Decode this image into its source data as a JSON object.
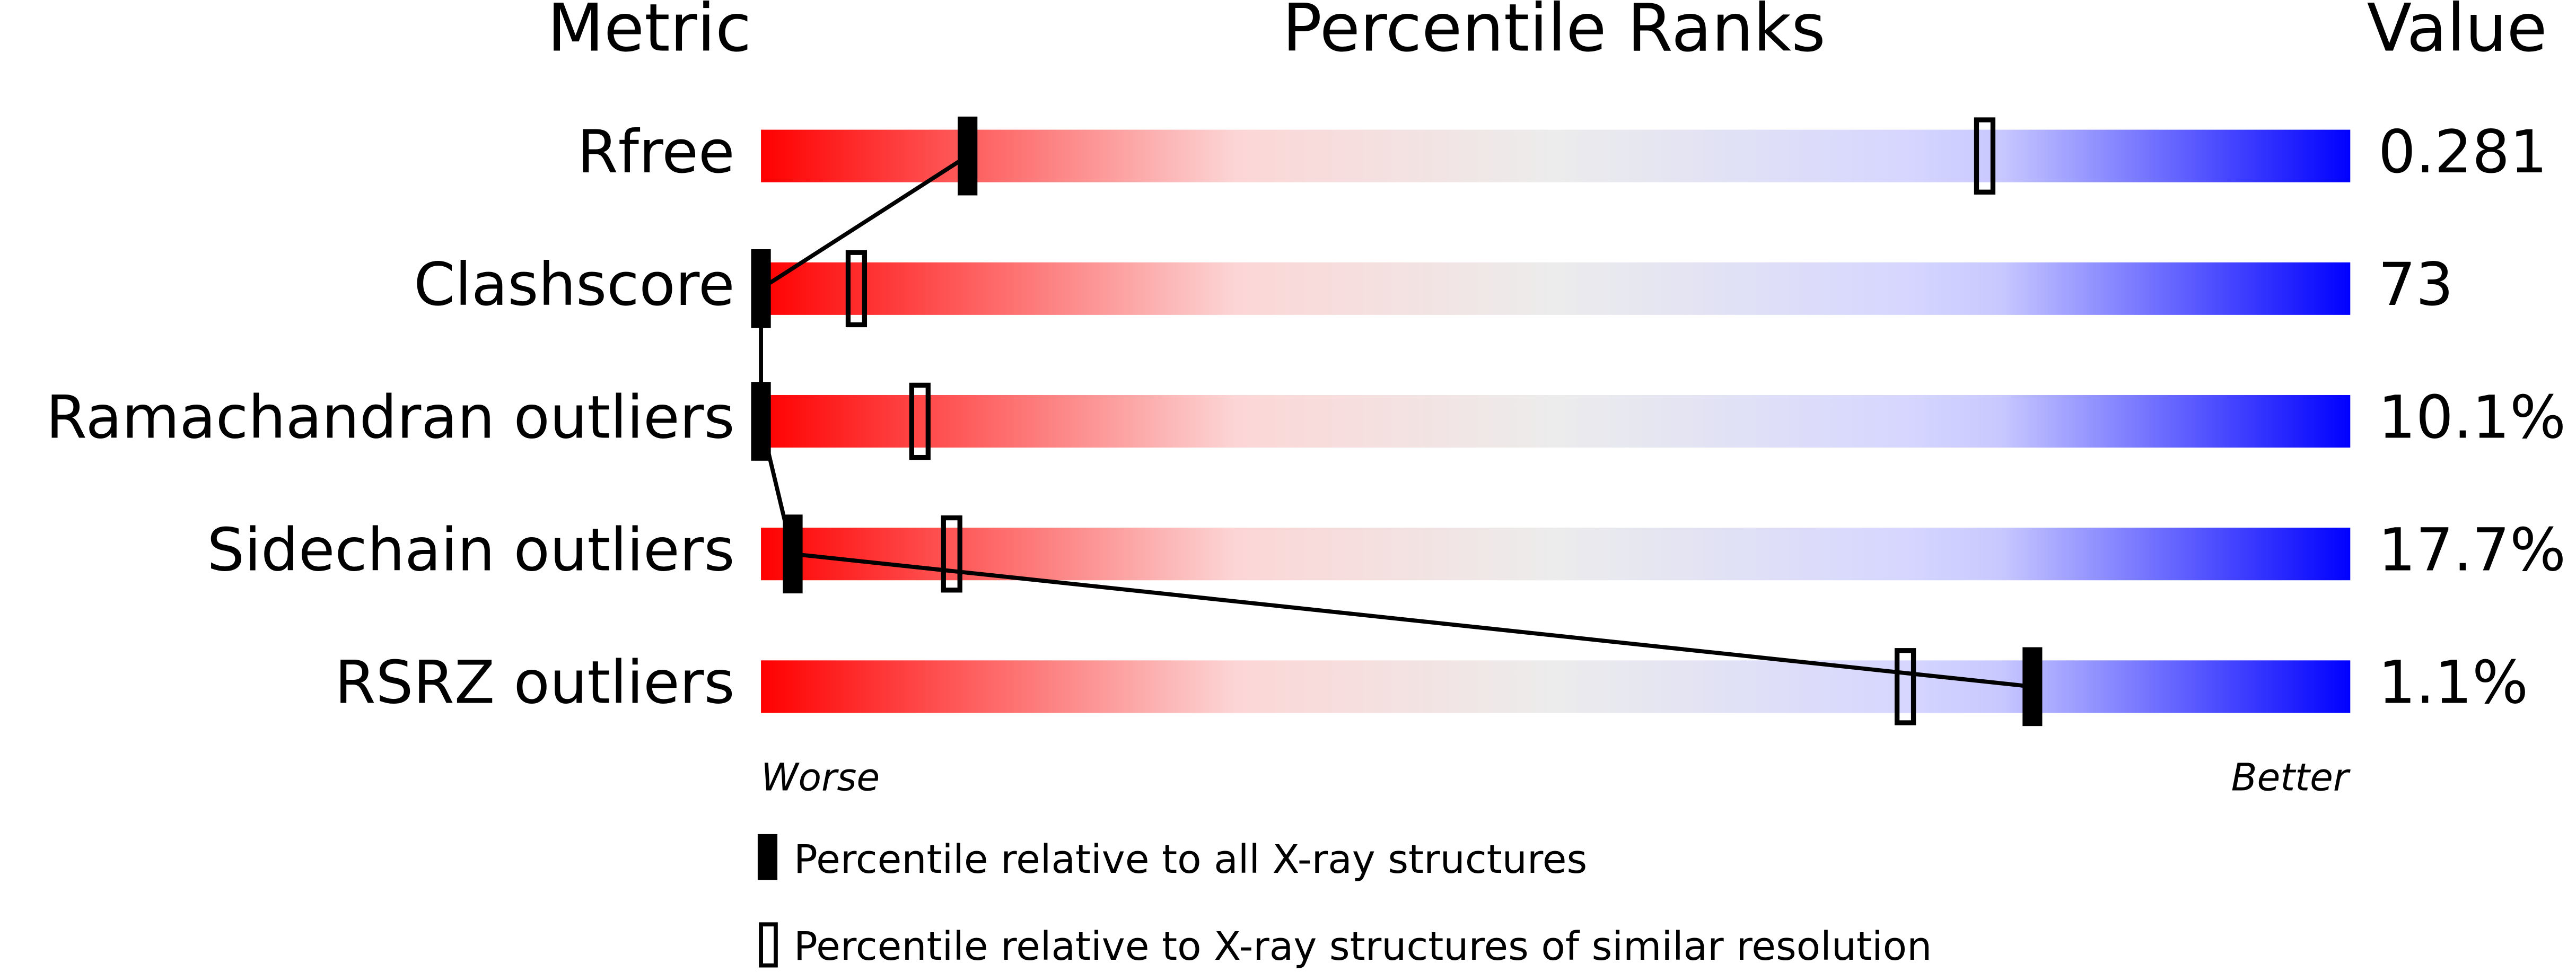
{
  "chart_data": {
    "type": "percentile",
    "title": "Percentile Ranks",
    "metric_header": "Metric",
    "value_header": "Value",
    "categories": [
      "Rfree",
      "Clashscore",
      "Ramachandran outliers",
      "Sidechain outliers",
      "RSRZ outliers"
    ],
    "values": [
      0.281,
      73,
      10.1,
      17.7,
      1.1
    ],
    "value_labels": [
      "0.281",
      "73",
      "10.1%",
      "17.7%",
      "1.1%"
    ],
    "xlim": [
      0,
      100
    ],
    "low_label": "Worse",
    "high_label": "Better",
    "series": [
      {
        "name": "Percentile relative to all X-ray structures",
        "color": "#000000",
        "style": "filled",
        "values": [
          13,
          0,
          0,
          2,
          80
        ]
      },
      {
        "name": "Percentile relative to X-ray structures of similar resolution",
        "color": "#000000",
        "style": "open",
        "values": [
          77,
          6,
          10,
          12,
          72
        ]
      }
    ]
  }
}
